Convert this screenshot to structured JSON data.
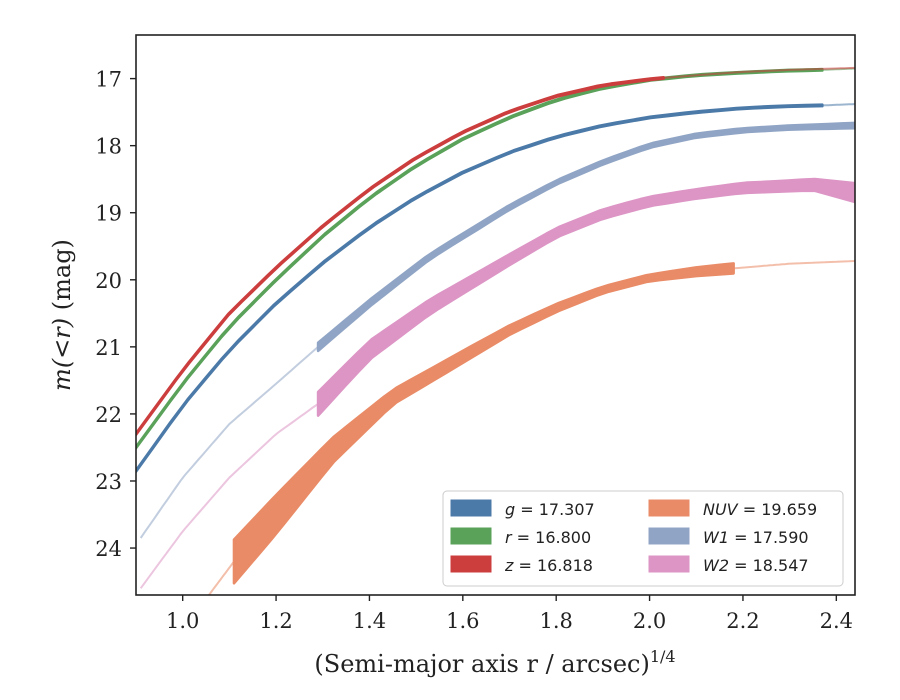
{
  "chart_data": {
    "type": "line",
    "xlabel": "(Semi-major axis r / arcsec)",
    "xlabel_exponent": "1/4",
    "ylabel_prefix": "m(<r)",
    "ylabel_unit": " (mag)",
    "xlim": [
      0.9,
      2.44
    ],
    "ylim": [
      24.7,
      16.35
    ],
    "y_inverted": true,
    "xticks": [
      "1.0",
      "1.2",
      "1.4",
      "1.6",
      "1.8",
      "2.0",
      "2.2",
      "2.4"
    ],
    "yticks": [
      "17",
      "18",
      "19",
      "20",
      "21",
      "22",
      "23",
      "24"
    ],
    "grid": false,
    "legend_position": "lower-right",
    "series": [
      {
        "name": "g = 17.307",
        "band": "g",
        "total": "17.307",
        "color": "#4c7aa8",
        "x": [
          0.9,
          1.0,
          1.1,
          1.2,
          1.3,
          1.4,
          1.5,
          1.6,
          1.7,
          1.8,
          1.9,
          2.0,
          2.1,
          2.2,
          2.3,
          2.37,
          2.44
        ],
        "y": [
          22.85,
          21.88,
          21.05,
          20.35,
          19.75,
          19.22,
          18.77,
          18.4,
          18.1,
          17.87,
          17.7,
          17.58,
          17.5,
          17.44,
          17.41,
          17.4,
          17.38
        ],
        "width": [
          0.02,
          0.02,
          0.02,
          0.02,
          0.02,
          0.02,
          0.02,
          0.02,
          0.02,
          0.02,
          0.02,
          0.02,
          0.02,
          0.02,
          0.02,
          0.02,
          0.02
        ],
        "measured_range": [
          0.9,
          2.37
        ]
      },
      {
        "name": "r = 16.800",
        "band": "r",
        "total": "16.800",
        "color": "#5aa15a",
        "x": [
          0.9,
          1.0,
          1.1,
          1.2,
          1.3,
          1.4,
          1.5,
          1.6,
          1.7,
          1.8,
          1.9,
          2.0,
          2.1,
          2.2,
          2.3,
          2.37,
          2.44
        ],
        "y": [
          22.5,
          21.55,
          20.7,
          20.0,
          19.35,
          18.78,
          18.3,
          17.9,
          17.58,
          17.32,
          17.14,
          17.02,
          16.95,
          16.91,
          16.88,
          16.87,
          16.85
        ],
        "width": [
          0.02,
          0.02,
          0.02,
          0.02,
          0.02,
          0.02,
          0.02,
          0.02,
          0.02,
          0.02,
          0.02,
          0.02,
          0.02,
          0.02,
          0.02,
          0.02,
          0.02
        ],
        "measured_range": [
          0.9,
          2.37
        ]
      },
      {
        "name": "z = 16.818",
        "band": "z",
        "total": "16.818",
        "color": "#cc3d3d",
        "x": [
          0.9,
          1.0,
          1.1,
          1.2,
          1.3,
          1.4,
          1.5,
          1.6,
          1.7,
          1.8,
          1.9,
          2.0,
          2.03,
          2.1,
          2.2,
          2.3,
          2.44
        ],
        "y": [
          22.3,
          21.35,
          20.5,
          19.82,
          19.2,
          18.65,
          18.18,
          17.8,
          17.49,
          17.26,
          17.1,
          17.01,
          16.99,
          16.95,
          16.9,
          16.87,
          16.84
        ],
        "width": [
          0.02,
          0.02,
          0.02,
          0.02,
          0.02,
          0.02,
          0.02,
          0.02,
          0.02,
          0.02,
          0.02,
          0.02,
          0.02,
          0.02,
          0.02,
          0.02,
          0.02
        ],
        "measured_range": [
          0.9,
          2.03
        ]
      },
      {
        "name": "NUV = 19.659",
        "band": "NUV",
        "total": "19.659",
        "color": "#e98b66",
        "x": [
          1.04,
          1.11,
          1.2,
          1.32,
          1.45,
          1.6,
          1.7,
          1.8,
          1.9,
          2.0,
          2.1,
          2.18,
          2.3,
          2.44
        ],
        "y": [
          24.85,
          24.2,
          23.5,
          22.55,
          21.75,
          21.15,
          20.75,
          20.42,
          20.15,
          19.97,
          19.88,
          19.83,
          19.76,
          19.72
        ],
        "width": [
          0.03,
          0.65,
          0.58,
          0.38,
          0.22,
          0.18,
          0.14,
          0.12,
          0.1,
          0.1,
          0.13,
          0.15,
          0.03,
          0.03
        ],
        "measured_range": [
          1.11,
          2.18
        ]
      },
      {
        "name": "W1 = 17.590",
        "band": "W1",
        "total": "17.590",
        "color": "#90a5c5",
        "x": [
          0.91,
          1.0,
          1.1,
          1.2,
          1.29,
          1.4,
          1.53,
          1.7,
          1.8,
          1.9,
          2.0,
          2.1,
          2.2,
          2.3,
          2.44
        ],
        "y": [
          23.85,
          22.95,
          22.15,
          21.55,
          21.0,
          20.35,
          19.65,
          18.92,
          18.55,
          18.25,
          18.0,
          17.85,
          17.77,
          17.73,
          17.7
        ],
        "width": [
          0.02,
          0.02,
          0.02,
          0.02,
          0.12,
          0.1,
          0.08,
          0.07,
          0.06,
          0.06,
          0.06,
          0.06,
          0.06,
          0.06,
          0.08
        ],
        "measured_range": [
          1.29,
          2.44
        ]
      },
      {
        "name": "W2 = 18.547",
        "band": "W2",
        "total": "18.547",
        "color": "#dc95c5",
        "x": [
          0.91,
          1.0,
          1.1,
          1.2,
          1.29,
          1.4,
          1.53,
          1.7,
          1.8,
          1.9,
          2.0,
          2.1,
          2.2,
          2.3,
          2.35,
          2.44
        ],
        "y": [
          24.6,
          23.75,
          22.95,
          22.3,
          21.85,
          21.05,
          20.4,
          19.7,
          19.3,
          19.02,
          18.83,
          18.72,
          18.63,
          18.6,
          18.58,
          18.7
        ],
        "width": [
          0.02,
          0.02,
          0.02,
          0.02,
          0.35,
          0.28,
          0.22,
          0.16,
          0.14,
          0.14,
          0.14,
          0.14,
          0.15,
          0.16,
          0.17,
          0.28
        ],
        "measured_range": [
          1.29,
          2.44
        ]
      }
    ]
  }
}
